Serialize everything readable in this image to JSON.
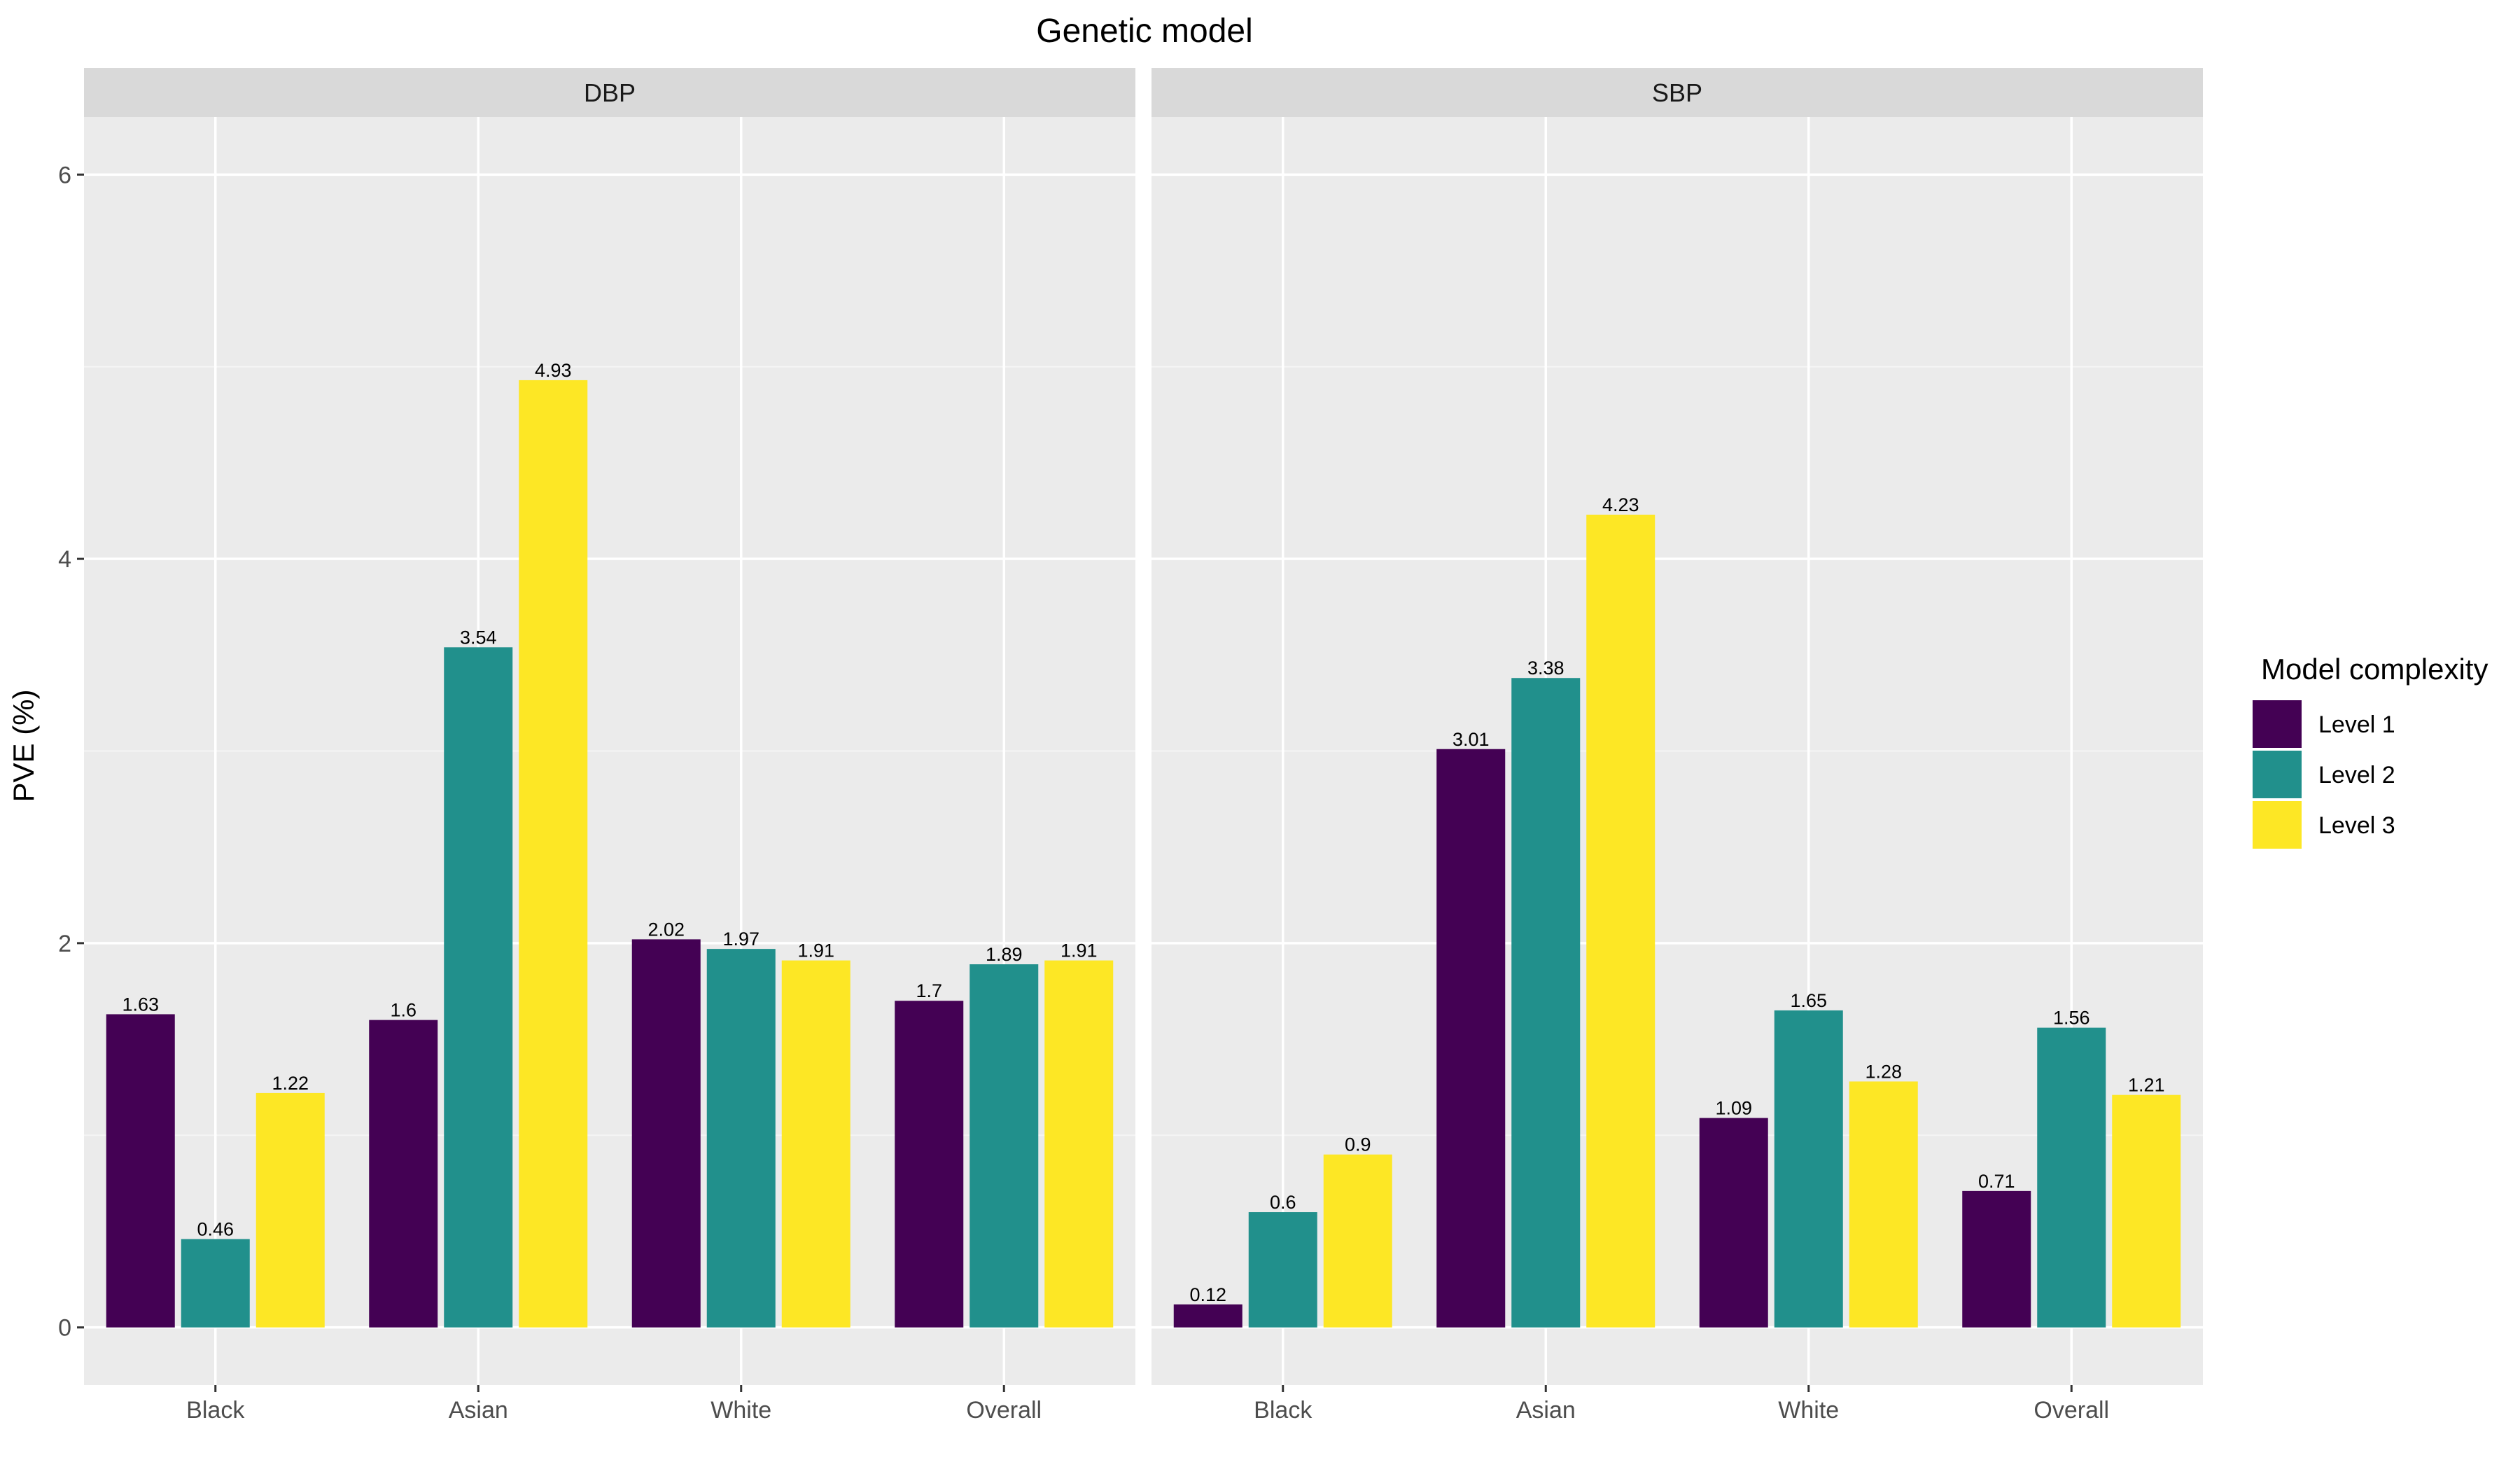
{
  "chart_data": {
    "type": "bar",
    "title": "Genetic model",
    "xlabel": "",
    "ylabel": "PVE (%)",
    "ylim": [
      -0.3,
      6.3
    ],
    "yticks": [
      0,
      2,
      4,
      6
    ],
    "grid": true,
    "categories": [
      "Black",
      "Asian",
      "White",
      "Overall"
    ],
    "legend": {
      "title": "Model complexity",
      "position": "right",
      "entries": [
        "Level 1",
        "Level 2",
        "Level 3"
      ]
    },
    "colors": [
      "#440154",
      "#21908C",
      "#FDE725"
    ],
    "panels": [
      {
        "name": "DBP",
        "series": [
          {
            "name": "Level 1",
            "values": [
              1.63,
              1.6,
              2.02,
              1.7
            ],
            "labels": [
              "1.63",
              "1.6",
              "2.02",
              "1.7"
            ]
          },
          {
            "name": "Level 2",
            "values": [
              0.46,
              3.54,
              1.97,
              1.89
            ],
            "labels": [
              "0.46",
              "3.54",
              "1.97",
              "1.89"
            ]
          },
          {
            "name": "Level 3",
            "values": [
              1.22,
              4.93,
              1.91,
              1.91
            ],
            "labels": [
              "1.22",
              "4.93",
              "1.91",
              "1.91"
            ]
          }
        ]
      },
      {
        "name": "SBP",
        "series": [
          {
            "name": "Level 1",
            "values": [
              0.12,
              3.01,
              1.09,
              0.71
            ],
            "labels": [
              "0.12",
              "3.01",
              "1.09",
              "0.71"
            ]
          },
          {
            "name": "Level 2",
            "values": [
              0.6,
              3.38,
              1.65,
              1.56
            ],
            "labels": [
              "0.6",
              "3.38",
              "1.65",
              "1.56"
            ]
          },
          {
            "name": "Level 3",
            "values": [
              0.9,
              4.23,
              1.28,
              1.21
            ],
            "labels": [
              "0.9",
              "4.23",
              "1.28",
              "1.21"
            ]
          }
        ]
      }
    ]
  }
}
